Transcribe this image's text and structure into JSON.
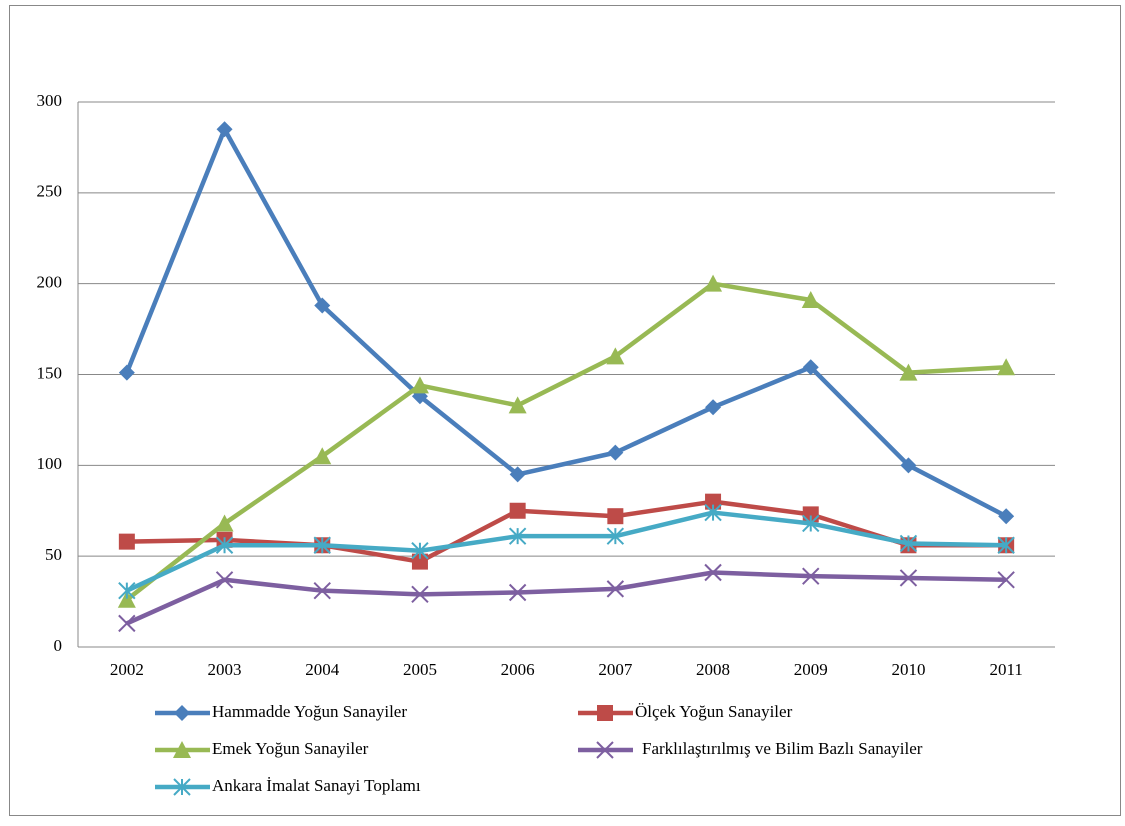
{
  "chart_data": {
    "type": "line",
    "categories": [
      "2002",
      "2003",
      "2004",
      "2005",
      "2006",
      "2007",
      "2008",
      "2009",
      "2010",
      "2011"
    ],
    "series": [
      {
        "name": "Hammadde Yoğun Sanayiler",
        "color": "#4a7ebb",
        "marker": "diamond",
        "values": [
          151,
          285,
          188,
          138,
          95,
          107,
          132,
          154,
          100,
          72
        ]
      },
      {
        "name": "Ölçek Yoğun Sanayiler",
        "color": "#be4b48",
        "marker": "square",
        "values": [
          58,
          59,
          56,
          47,
          75,
          72,
          80,
          73,
          56,
          56
        ]
      },
      {
        "name": "Emek Yoğun Sanayiler",
        "color": "#98b954",
        "marker": "triangle",
        "values": [
          26,
          68,
          105,
          144,
          133,
          160,
          200,
          191,
          151,
          154
        ]
      },
      {
        "name": "Farklılaştırılmış ve Bilim Bazlı Sanayiler",
        "color": "#7d5fa0",
        "marker": "x",
        "values": [
          13,
          37,
          31,
          29,
          30,
          32,
          41,
          39,
          38,
          37
        ]
      },
      {
        "name": "Ankara İmalat Sanayi Toplamı",
        "color": "#46aac5",
        "marker": "asterisk",
        "values": [
          31,
          56,
          56,
          53,
          61,
          61,
          74,
          68,
          57,
          56
        ]
      }
    ],
    "ylim": [
      0,
      300
    ],
    "yticks": [
      0,
      50,
      100,
      150,
      200,
      250,
      300
    ],
    "grid": true,
    "legend": "bottom"
  }
}
